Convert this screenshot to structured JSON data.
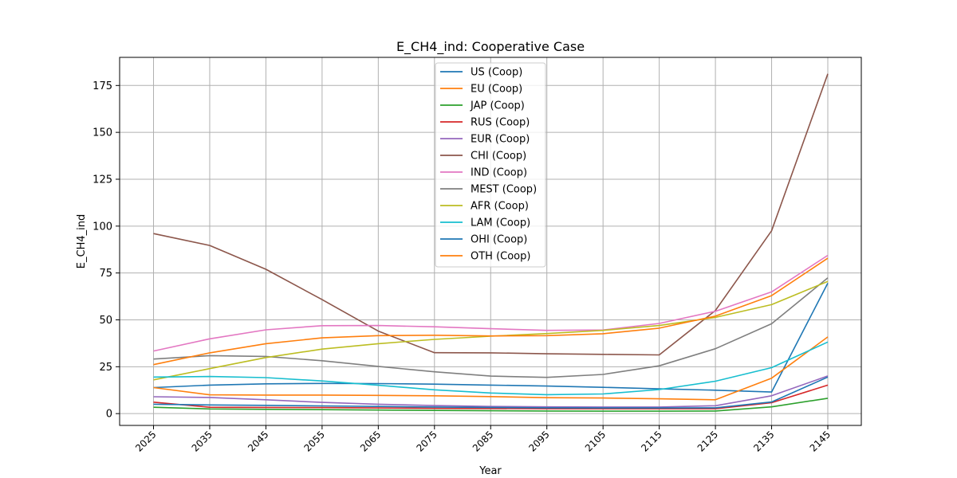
{
  "chart_data": {
    "type": "line",
    "title": "E_CH4_ind: Cooperative Case",
    "xlabel": "Year",
    "ylabel": "E_CH4_ind",
    "categories": [
      "2025",
      "2035",
      "2045",
      "2055",
      "2065",
      "2075",
      "2085",
      "2095",
      "2105",
      "2115",
      "2125",
      "2135",
      "2145"
    ],
    "ylim": [
      -6.3,
      190
    ],
    "yticks": [
      0,
      25,
      50,
      75,
      100,
      125,
      150,
      175
    ],
    "grid": true,
    "legend_position": "top-center",
    "series": [
      {
        "name": "US (Coop)",
        "color": "#1f77b4",
        "values": [
          13.9,
          15.2,
          15.9,
          16.1,
          16.0,
          15.7,
          15.2,
          14.7,
          14.0,
          13.2,
          12.5,
          11.5,
          69.6
        ]
      },
      {
        "name": "EU (Coop)",
        "color": "#ff7f0e",
        "values": [
          13.9,
          10.0,
          9.9,
          9.9,
          9.7,
          9.5,
          9.1,
          8.5,
          8.3,
          7.9,
          7.4,
          18.9,
          40.9
        ]
      },
      {
        "name": "JAP (Coop)",
        "color": "#2ca02c",
        "values": [
          3.4,
          2.5,
          2.3,
          2.1,
          1.9,
          1.7,
          1.5,
          1.4,
          1.3,
          1.3,
          1.4,
          3.6,
          8.2
        ]
      },
      {
        "name": "RUS (Coop)",
        "color": "#d62728",
        "values": [
          6.1,
          3.4,
          3.3,
          3.2,
          3.0,
          2.8,
          2.7,
          2.6,
          2.6,
          2.6,
          2.6,
          5.8,
          15.2
        ]
      },
      {
        "name": "EUR (Coop)",
        "color": "#9467bd",
        "values": [
          9.0,
          8.6,
          7.4,
          6.0,
          5.0,
          4.3,
          3.8,
          3.6,
          3.5,
          3.5,
          4.2,
          9.5,
          20.1
        ]
      },
      {
        "name": "CHI (Coop)",
        "color": "#8c564b",
        "values": [
          96.0,
          89.7,
          77.0,
          60.8,
          44.0,
          32.5,
          32.4,
          31.9,
          31.6,
          31.3,
          55.0,
          97.5,
          181.2
        ]
      },
      {
        "name": "IND (Coop)",
        "color": "#e377c2",
        "values": [
          33.4,
          39.9,
          44.7,
          46.9,
          47.0,
          46.3,
          45.3,
          44.4,
          44.6,
          48.1,
          54.6,
          64.9,
          84.4
        ]
      },
      {
        "name": "MEST (Coop)",
        "color": "#7f7f7f",
        "values": [
          29.1,
          30.9,
          30.5,
          28.2,
          25.2,
          22.3,
          20.0,
          19.3,
          20.9,
          25.5,
          34.6,
          47.9,
          72.4
        ]
      },
      {
        "name": "AFR (Coop)",
        "color": "#bcbd22",
        "values": [
          18.0,
          24.0,
          29.9,
          34.4,
          37.3,
          39.6,
          41.3,
          42.7,
          44.4,
          47.0,
          51.3,
          58.1,
          70.5
        ]
      },
      {
        "name": "LAM (Coop)",
        "color": "#17becf",
        "values": [
          19.5,
          19.8,
          19.2,
          17.4,
          15.1,
          12.7,
          11.0,
          10.1,
          10.5,
          12.8,
          17.3,
          24.5,
          38.2
        ]
      },
      {
        "name": "OHI (Coop)",
        "color": "#1f77b4",
        "values": [
          5.0,
          4.6,
          4.4,
          4.1,
          3.8,
          3.5,
          3.3,
          3.1,
          3.0,
          3.0,
          3.1,
          6.2,
          19.5
        ]
      },
      {
        "name": "OTH (Coop)",
        "color": "#ff7f0e",
        "values": [
          26.1,
          32.4,
          37.3,
          40.4,
          41.6,
          41.8,
          41.4,
          41.6,
          42.6,
          45.6,
          52.0,
          62.9,
          82.9
        ]
      }
    ]
  }
}
